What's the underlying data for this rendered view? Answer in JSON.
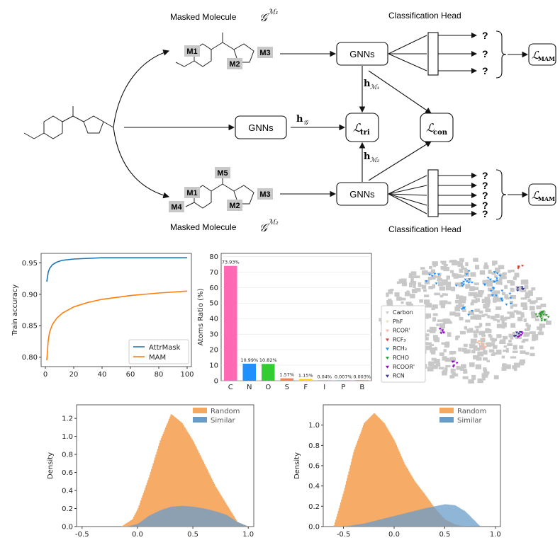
{
  "diagram": {
    "masked_top_label": "Masked Molecule",
    "masked_top_math": "𝒢",
    "masked_top_sup": "ℳ₁",
    "masked_bottom_label": "Masked Molecule",
    "masked_bottom_math": "𝒢",
    "masked_bottom_sup": "ℳ₂",
    "head_top": "Classification Head",
    "head_bottom": "Classification Head",
    "gnn_top": "GNNs",
    "gnn_mid": "GNNs",
    "gnn_bottom": "GNNs",
    "h_g": "h",
    "h_g_sub": "𝒢",
    "h_m1": "h",
    "h_m1_sub": "ℳ₁",
    "h_m2": "h",
    "h_m2_sub": "ℳ₂",
    "l_tri": "ℒ",
    "l_tri_sub": "tri",
    "l_con": "ℒ",
    "l_con_sub": "con",
    "l_mam_top": "ℒ",
    "l_mam_top_sub": "MAM",
    "l_mam_bottom": "ℒ",
    "l_mam_bottom_sub": "MAM",
    "q": "?",
    "masks": {
      "m1": "M1",
      "m2": "M2",
      "m3": "M3",
      "m4": "M4",
      "m5": "M5"
    }
  },
  "chart_data": [
    {
      "type": "line",
      "ylabel": "Train accuracy",
      "xlim": [
        0,
        100
      ],
      "ylim": [
        0.785,
        0.965
      ],
      "x_ticks": [
        0,
        20,
        40,
        60,
        80,
        100
      ],
      "y_ticks": [
        0.8,
        0.85,
        0.9,
        0.95
      ],
      "x_tick_labels": [
        "0",
        "20",
        "40",
        "60",
        "80",
        "100"
      ],
      "y_tick_labels": [
        "0.80",
        "0.85",
        "0.90",
        "0.95"
      ],
      "legend_position": "bottom-right",
      "series": [
        {
          "name": "AttrMask",
          "color": "#1f77b4",
          "x": [
            1,
            2,
            3,
            5,
            8,
            12,
            20,
            30,
            40,
            60,
            80,
            100
          ],
          "y": [
            0.92,
            0.935,
            0.941,
            0.947,
            0.951,
            0.954,
            0.956,
            0.957,
            0.958,
            0.958,
            0.958,
            0.958
          ]
        },
        {
          "name": "MAM",
          "color": "#ff7f0e",
          "x": [
            1,
            2,
            3,
            5,
            8,
            12,
            20,
            30,
            40,
            60,
            80,
            100
          ],
          "y": [
            0.795,
            0.826,
            0.84,
            0.852,
            0.862,
            0.87,
            0.88,
            0.887,
            0.892,
            0.898,
            0.902,
            0.905
          ]
        }
      ]
    },
    {
      "type": "bar",
      "ylabel": "Atoms Ratio (%)",
      "ylim": [
        0,
        82
      ],
      "y_ticks": [
        0,
        10,
        20,
        30,
        40,
        50,
        60,
        70,
        80
      ],
      "y_tick_labels": [
        "0",
        "10",
        "20",
        "30",
        "40",
        "50",
        "60",
        "70",
        "80"
      ],
      "categories": [
        "C",
        "N",
        "O",
        "S",
        "F",
        "I",
        "P",
        "B"
      ],
      "values": [
        73.93,
        10.99,
        10.82,
        1.57,
        1.15,
        0.04,
        0.007,
        0.003
      ],
      "data_labels": [
        "73.93%",
        "10.99%",
        "10.82%",
        "1.57%",
        "1.15%",
        "0.04%",
        "0.007%",
        "0.003%"
      ],
      "colors": [
        "#ff69b4",
        "#1e90ff",
        "#32cd32",
        "#ff7f50",
        "#ffd700",
        "#9370db",
        "#20b2aa",
        "#a0522d"
      ]
    },
    {
      "type": "scatter",
      "legend_position": "left",
      "legend": [
        {
          "name": "Carbon",
          "color": "#cccccc"
        },
        {
          "name": "PhF",
          "color": "#f5deb3"
        },
        {
          "name": "RCOR'",
          "color": "#ffb6a0"
        },
        {
          "name": "RCF₃",
          "color": "#e03c31"
        },
        {
          "name": "RCH₃",
          "color": "#1e90ff"
        },
        {
          "name": "RCHO",
          "color": "#2ca02c"
        },
        {
          "name": "RCOOR'",
          "color": "#9400d3"
        },
        {
          "name": "RCN",
          "color": "#333399"
        }
      ]
    },
    {
      "type": "area",
      "ylabel": "Density",
      "xlim": [
        -0.55,
        1.05
      ],
      "ylim": [
        0,
        1.35
      ],
      "x_ticks": [
        -0.5,
        0.0,
        0.5,
        1.0
      ],
      "y_ticks": [
        0.0,
        0.2,
        0.4,
        0.6,
        0.8,
        1.0,
        1.2
      ],
      "x_tick_labels": [
        "-0.5",
        "0.0",
        "0.5",
        "1.0"
      ],
      "y_tick_labels": [
        "0.0",
        "0.2",
        "0.4",
        "0.6",
        "0.8",
        "1.0",
        "1.2"
      ],
      "legend_position": "top-right",
      "series": [
        {
          "name": "Random",
          "color": "#f5a85f",
          "x": [
            -0.15,
            -0.05,
            0.0,
            0.1,
            0.2,
            0.3,
            0.4,
            0.5,
            0.6,
            0.7,
            0.8,
            0.9,
            1.0
          ],
          "y": [
            0.0,
            0.08,
            0.2,
            0.55,
            0.95,
            1.25,
            1.15,
            0.95,
            0.7,
            0.45,
            0.25,
            0.05,
            0.0
          ]
        },
        {
          "name": "Similar",
          "color": "#6a9cc9",
          "x": [
            -0.1,
            0.0,
            0.1,
            0.2,
            0.3,
            0.4,
            0.5,
            0.6,
            0.7,
            0.8,
            0.9,
            1.0
          ],
          "y": [
            0.0,
            0.03,
            0.12,
            0.18,
            0.22,
            0.23,
            0.22,
            0.2,
            0.17,
            0.13,
            0.05,
            0.0
          ]
        }
      ]
    },
    {
      "type": "area",
      "ylabel": "Density",
      "xlim": [
        -0.7,
        1.05
      ],
      "ylim": [
        0,
        1.2
      ],
      "x_ticks": [
        -0.5,
        0.0,
        0.5,
        1.0
      ],
      "y_ticks": [
        0.0,
        0.2,
        0.4,
        0.6,
        0.8,
        1.0
      ],
      "x_tick_labels": [
        "-0.5",
        "0.0",
        "0.5",
        "1.0"
      ],
      "y_tick_labels": [
        "0.0",
        "0.2",
        "0.4",
        "0.6",
        "0.8",
        "1.0"
      ],
      "legend_position": "top-right",
      "series": [
        {
          "name": "Random",
          "color": "#f5a85f",
          "x": [
            -0.6,
            -0.5,
            -0.4,
            -0.3,
            -0.2,
            -0.1,
            0.0,
            0.1,
            0.2,
            0.3,
            0.4,
            0.5,
            0.6,
            0.7
          ],
          "y": [
            0.0,
            0.35,
            0.75,
            1.02,
            1.12,
            1.02,
            0.85,
            0.62,
            0.45,
            0.32,
            0.18,
            0.07,
            0.02,
            0.0
          ]
        },
        {
          "name": "Similar",
          "color": "#6a9cc9",
          "x": [
            -0.5,
            -0.3,
            -0.1,
            0.1,
            0.3,
            0.4,
            0.5,
            0.6,
            0.7,
            0.75,
            0.8,
            0.85
          ],
          "y": [
            0.0,
            0.03,
            0.08,
            0.13,
            0.18,
            0.2,
            0.22,
            0.21,
            0.15,
            0.1,
            0.05,
            0.0
          ]
        }
      ]
    }
  ]
}
